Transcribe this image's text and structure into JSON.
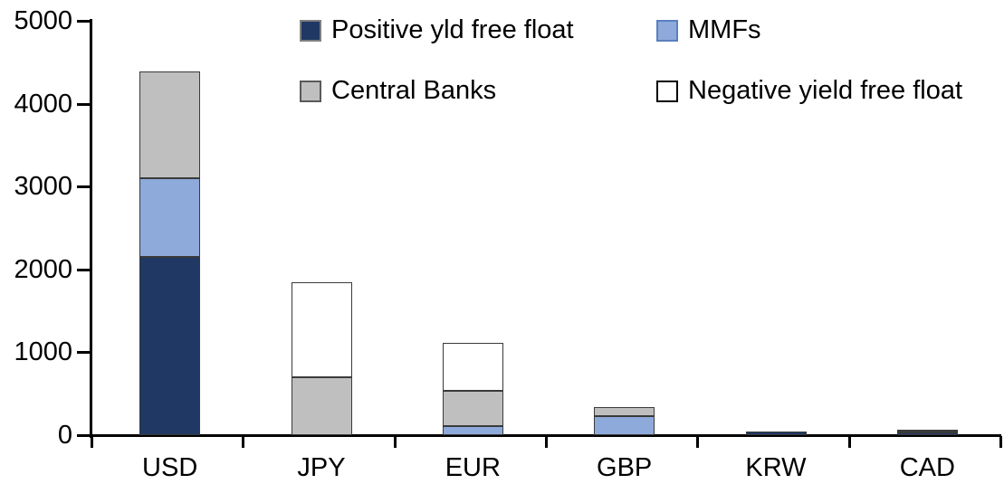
{
  "chart_data": {
    "type": "bar",
    "stacked": true,
    "title": "",
    "xlabel": "",
    "ylabel": "",
    "categories": [
      "USD",
      "JPY",
      "EUR",
      "GBP",
      "KRW",
      "CAD"
    ],
    "series": [
      {
        "name": "Positive yld free float",
        "color": "#1F3864",
        "swatch_border": "#7f7f7f",
        "values": [
          2150,
          0,
          0,
          0,
          45,
          30
        ]
      },
      {
        "name": "MMFs",
        "color": "#8EAADB",
        "swatch_border": "#5B7FBF",
        "values": [
          950,
          0,
          110,
          225,
          0,
          10
        ]
      },
      {
        "name": "Central Banks",
        "color": "#BFBFBF",
        "swatch_border": "#595959",
        "values": [
          1290,
          700,
          430,
          110,
          0,
          25
        ]
      },
      {
        "name": "Negative yield free float",
        "color": "#FFFFFF",
        "swatch_border": "#000000",
        "values": [
          0,
          1150,
          570,
          0,
          0,
          0
        ]
      }
    ],
    "ylim": [
      0,
      5000
    ],
    "yticks": [
      0,
      1000,
      2000,
      3000,
      4000,
      5000
    ],
    "grid": false,
    "legend_position": "top",
    "legend_rows": [
      [
        "Positive yld free float",
        "MMFs"
      ],
      [
        "Central Banks",
        "Negative yield free float"
      ]
    ],
    "axis_color": "#000000",
    "background_color": "#FFFFFF"
  }
}
